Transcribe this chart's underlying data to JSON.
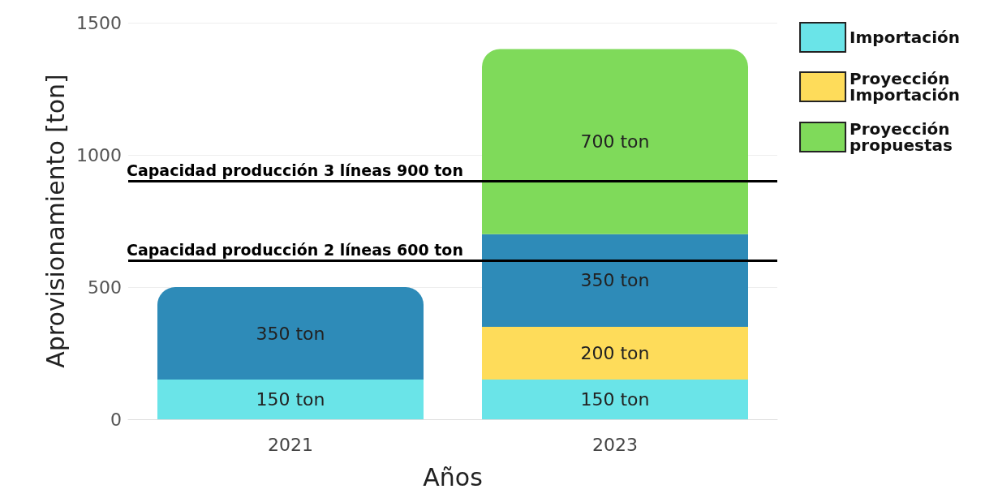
{
  "chart_data": {
    "type": "bar",
    "stacked": true,
    "xlabel": "Años",
    "ylabel": "Aprovisionamiento [ton]",
    "categories": [
      "2021",
      "2023"
    ],
    "series": [
      {
        "name": "Importación",
        "color": "#6ae4e8",
        "values": [
          150,
          150
        ],
        "value_labels": [
          "150 ton",
          "150 ton"
        ]
      },
      {
        "name": "Proyección Importación",
        "color": "#fedc5a",
        "values": [
          null,
          200
        ],
        "value_labels": [
          null,
          "200 ton"
        ]
      },
      {
        "color": "#2e8bb8",
        "values": [
          350,
          350
        ],
        "value_labels": [
          "350 ton",
          "350 ton"
        ]
      },
      {
        "name": "Proyección propuestas",
        "color": "#7fda5a",
        "values": [
          null,
          700
        ],
        "value_labels": [
          null,
          "700 ton"
        ]
      }
    ],
    "ylim": [
      0,
      1500
    ],
    "yticks": [
      0,
      500,
      1000,
      1500
    ],
    "grid": "y",
    "legend": "right",
    "ref_lines": [
      {
        "axis": "y",
        "value": 900,
        "label": "Capacidad producción 3 líneas 900 ton",
        "color": "#000000"
      },
      {
        "axis": "y",
        "value": 600,
        "label": "Capacidad producción 2 líneas 600 ton",
        "color": "#000000"
      }
    ]
  }
}
